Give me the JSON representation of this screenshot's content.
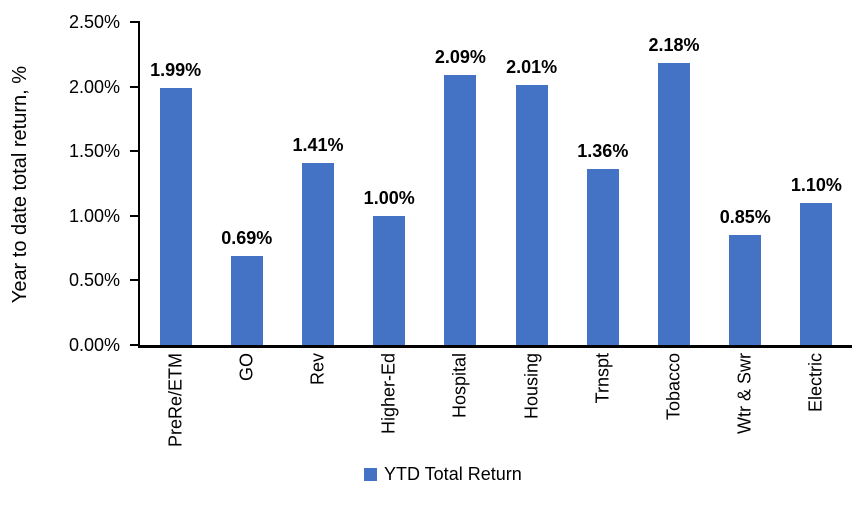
{
  "chart_data": {
    "type": "bar",
    "categories": [
      "PreRe/ETM",
      "GO",
      "Rev",
      "Higher-Ed",
      "Hospital",
      "Housing",
      "Trnspt",
      "Tobacco",
      "Wtr & Swr",
      "Electric"
    ],
    "values": [
      1.99,
      0.69,
      1.41,
      1.0,
      2.09,
      2.01,
      1.36,
      2.18,
      0.85,
      1.1
    ],
    "value_labels": [
      "1.99%",
      "0.69%",
      "1.41%",
      "1.00%",
      "2.09%",
      "2.01%",
      "1.36%",
      "2.18%",
      "0.85%",
      "1.10%"
    ],
    "title": "",
    "xlabel": "",
    "ylabel": "Year to date total return, %",
    "ylim": [
      0,
      2.5
    ],
    "y_tick_values": [
      0,
      0.5,
      1.0,
      1.5,
      2.0,
      2.5
    ],
    "y_tick_labels": [
      "0.00%",
      "0.50%",
      "1.00%",
      "1.50%",
      "2.00%",
      "2.50%"
    ],
    "grid": false,
    "legend_position": "bottom",
    "legend": {
      "label": "YTD Total Return"
    },
    "colors": {
      "bar": "#4472C4",
      "axis": "#000000",
      "text": "#000000",
      "background": "#ffffff"
    }
  }
}
